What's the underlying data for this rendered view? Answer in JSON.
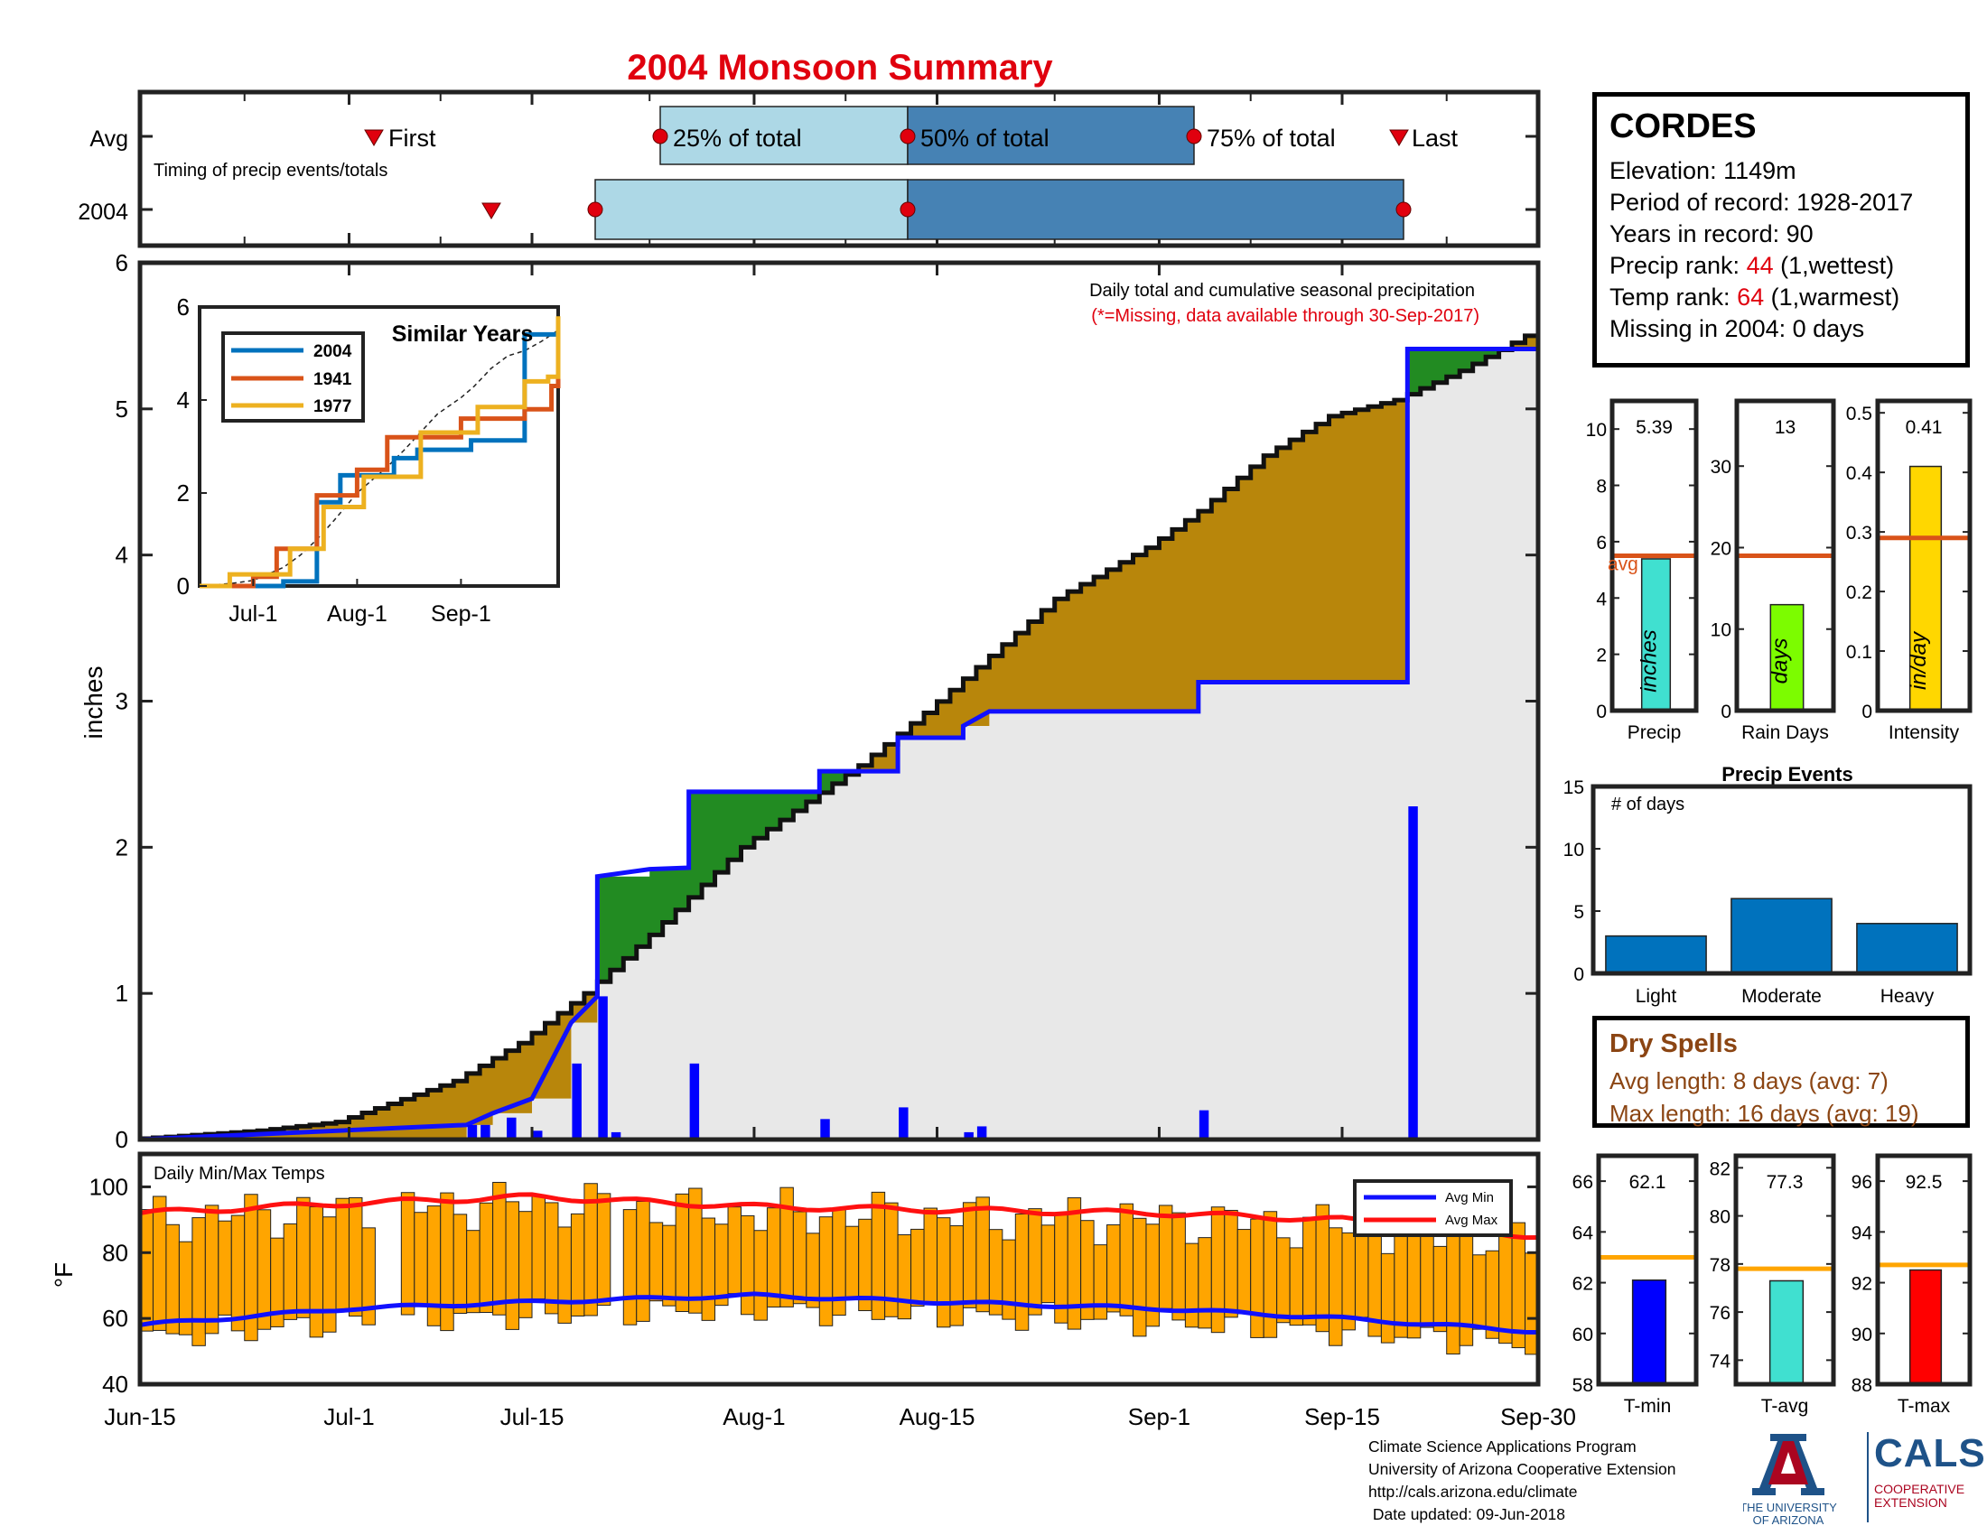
{
  "title": "2004 Monsoon Summary",
  "colors": {
    "title": "#e0000e",
    "cum_line": "#1010ff",
    "wet_fill": "#228b22",
    "dry_fill": "#b8860b",
    "base_fill": "#e8e8e8",
    "daily_bars": "#0000ff",
    "temp_bars": "#ffa500",
    "avg_min": "#1010ff",
    "avg_max": "#ff1010",
    "light_blue": "#add8e6",
    "steel_blue": "#4682b4",
    "marker_red": "#e0000e",
    "precip_bar": "#40e0d0",
    "raindays_bar": "#7cfc00",
    "intensity_bar": "#ffd700",
    "avg_line": "#d95319",
    "events_bar": "#0072bd",
    "tmin_bar": "#0000ff",
    "tavg_bar": "#40e0d0",
    "tmax_bar": "#ff0000",
    "temp_avg_line": "#ffa500",
    "dry_spell_text": "#8b4513"
  },
  "timing": {
    "row_avg": "Avg",
    "row_year": "2004",
    "subtitle": "Timing of precip events/totals",
    "labels": {
      "first": "First",
      "p25": "25% of total",
      "p50": "50% of total",
      "p75": "75% of total",
      "last": "Last"
    },
    "avg": {
      "first": "Jul-4",
      "p25": "Jul-24",
      "p50": "Aug-12",
      "p75": "Aug-31",
      "last": "Sep-20"
    },
    "year": {
      "first": "Jul-11",
      "p25": "Jul-20",
      "p50": "Aug-12",
      "last": "Sep-19"
    }
  },
  "main": {
    "ylabel": "inches",
    "annotation": "Daily total and cumulative seasonal precipitation",
    "annotation2": "(*=Missing, data available through 30-Sep-2017)",
    "x_ticks": [
      "Jun-15",
      "Jul-1",
      "Jul-15",
      "Aug-1",
      "Aug-15",
      "Sep-1",
      "Sep-15",
      "Sep-30"
    ],
    "y_ticks": [
      "0",
      "1",
      "2",
      "3",
      "4",
      "5",
      "6"
    ]
  },
  "inset": {
    "title": "Similar Years",
    "legend": [
      "2004",
      "1941",
      "1977"
    ],
    "x_ticks": [
      "Jul-1",
      "Aug-1",
      "Sep-1"
    ],
    "y_ticks": [
      "0",
      "2",
      "4",
      "6"
    ]
  },
  "temps": {
    "label": "Daily Min/Max Temps",
    "ylabel": "°F",
    "legend": [
      "Avg Min",
      "Avg Max"
    ],
    "y_ticks": [
      "40",
      "60",
      "80",
      "100"
    ]
  },
  "station": {
    "name": "CORDES",
    "elevation_label": "Elevation: 1149m",
    "period_label": "Period of record: 1928-2017",
    "years_label": "Years in record: 90",
    "precip_rank_prefix": "Precip rank: ",
    "precip_rank": "44",
    "precip_rank_suffix": " (1,wettest)",
    "temp_rank_prefix": "Temp rank: ",
    "temp_rank": "64",
    "temp_rank_suffix": " (1,warmest)",
    "missing_label": "Missing in 2004: 0 days"
  },
  "summary_bars": {
    "precip": {
      "value": "5.39",
      "label": "Precip",
      "unit": "inches",
      "avg_label": "avg",
      "y_ticks": [
        "0",
        "2",
        "4",
        "6",
        "8",
        "10"
      ]
    },
    "raindays": {
      "value": "13",
      "label": "Rain Days",
      "unit": "days",
      "y_ticks": [
        "0",
        "10",
        "20",
        "30"
      ]
    },
    "intensity": {
      "value": "0.41",
      "label": "Intensity",
      "unit": "in/day",
      "y_ticks": [
        "0",
        "0.1",
        "0.2",
        "0.3",
        "0.4",
        "0.5"
      ]
    }
  },
  "events": {
    "title": "Precip Events",
    "ylabel": "# of days",
    "categories": [
      "Light",
      "Moderate",
      "Heavy"
    ],
    "y_ticks": [
      "0",
      "5",
      "10",
      "15"
    ]
  },
  "dry_spells": {
    "title": "Dry Spells",
    "avg_length": "Avg length: 8 days (avg: 7)",
    "max_length": "Max length: 16 days (avg: 19)"
  },
  "temp_bars": {
    "tmin": {
      "value": "62.1",
      "label": "T-min",
      "y_ticks": [
        "58",
        "60",
        "62",
        "64",
        "66"
      ]
    },
    "tavg": {
      "value": "77.3",
      "label": "T-avg",
      "y_ticks": [
        "74",
        "76",
        "78",
        "80",
        "82"
      ]
    },
    "tmax": {
      "value": "92.5",
      "label": "T-max",
      "y_ticks": [
        "88",
        "90",
        "92",
        "94",
        "96"
      ]
    }
  },
  "footer": {
    "line1": "Climate Science Applications Program",
    "line2": "University of Arizona Cooperative Extension",
    "line3": "http://cals.arizona.edu/climate",
    "line4": " Date updated: 09-Jun-2018"
  },
  "logos": {
    "ua_line1": "THE UNIVERSITY",
    "ua_line2": "OF ARIZONA",
    "cals": "CALS",
    "cals_sub1": "COOPERATIVE",
    "cals_sub2": "EXTENSION"
  },
  "chart_data": [
    {
      "type": "area",
      "title": "2004 Monsoon Summary",
      "ylabel": "inches",
      "x_range": [
        "Jun-15",
        "Sep-30"
      ],
      "ylim": [
        0,
        6
      ],
      "series": [
        {
          "name": "2004 cumulative",
          "points": [
            [
              "Jun-15",
              0
            ],
            [
              "Jul-10",
              0.1
            ],
            [
              "Jul-12",
              0.18
            ],
            [
              "Jul-15",
              0.28
            ],
            [
              "Jul-18",
              0.8
            ],
            [
              "Jul-20",
              0.98
            ],
            [
              "Jul-20",
              1.8
            ],
            [
              "Jul-24",
              1.85
            ],
            [
              "Jul-27",
              1.86
            ],
            [
              "Jul-27",
              2.38
            ],
            [
              "Aug-6",
              2.38
            ],
            [
              "Aug-6",
              2.52
            ],
            [
              "Aug-12",
              2.52
            ],
            [
              "Aug-12",
              2.75
            ],
            [
              "Aug-17",
              2.75
            ],
            [
              "Aug-17",
              2.83
            ],
            [
              "Aug-19",
              2.93
            ],
            [
              "Sep-4",
              2.93
            ],
            [
              "Sep-4",
              3.13
            ],
            [
              "Sep-20",
              3.13
            ],
            [
              "Sep-20",
              5.41
            ],
            [
              "Sep-30",
              5.41
            ]
          ]
        },
        {
          "name": "Average cumulative",
          "points": [
            [
              "Jun-15",
              0
            ],
            [
              "Jun-25",
              0.06
            ],
            [
              "Jul-1",
              0.12
            ],
            [
              "Jul-10",
              0.4
            ],
            [
              "Jul-15",
              0.66
            ],
            [
              "Jul-20",
              1.0
            ],
            [
              "Jul-25",
              1.4
            ],
            [
              "Aug-1",
              2.0
            ],
            [
              "Aug-10",
              2.56
            ],
            [
              "Aug-15",
              2.92
            ],
            [
              "Aug-25",
              3.7
            ],
            [
              "Sep-1",
              4.05
            ],
            [
              "Sep-5",
              4.3
            ],
            [
              "Sep-10",
              4.68
            ],
            [
              "Sep-15",
              4.95
            ],
            [
              "Sep-20",
              5.06
            ],
            [
              "Sep-25",
              5.26
            ],
            [
              "Sep-30",
              5.5
            ]
          ]
        },
        {
          "name": "Daily precip",
          "points": [
            [
              "Jul-10",
              0.1
            ],
            [
              "Jul-11",
              0.1
            ],
            [
              "Jul-13",
              0.15
            ],
            [
              "Jul-15",
              0.06
            ],
            [
              "Jul-18",
              0.52
            ],
            [
              "Jul-20",
              0.98
            ],
            [
              "Jul-21",
              0.05
            ],
            [
              "Jul-27",
              0.52
            ],
            [
              "Aug-6",
              0.14
            ],
            [
              "Aug-12",
              0.22
            ],
            [
              "Aug-17",
              0.05
            ],
            [
              "Aug-18",
              0.09
            ],
            [
              "Sep-4",
              0.2
            ],
            [
              "Sep-20",
              2.28
            ]
          ]
        }
      ]
    },
    {
      "type": "line",
      "title": "Similar Years",
      "x_ticks": [
        "Jul-1",
        "Aug-1",
        "Sep-1"
      ],
      "ylim": [
        0,
        6
      ],
      "series": [
        {
          "name": "2004",
          "points": [
            [
              "Jun-15",
              0
            ],
            [
              "Jul-10",
              0.1
            ],
            [
              "Jul-20",
              1.8
            ],
            [
              "Jul-27",
              2.38
            ],
            [
              "Aug-12",
              2.75
            ],
            [
              "Aug-19",
              2.93
            ],
            [
              "Sep-4",
              3.13
            ],
            [
              "Sep-20",
              5.41
            ],
            [
              "Sep-30",
              5.41
            ]
          ]
        },
        {
          "name": "1941",
          "points": [
            [
              "Jun-15",
              0
            ],
            [
              "Jul-1",
              0.2
            ],
            [
              "Jul-8",
              0.8
            ],
            [
              "Jul-20",
              1.95
            ],
            [
              "Aug-1",
              2.5
            ],
            [
              "Aug-10",
              3.2
            ],
            [
              "Sep-1",
              3.6
            ],
            [
              "Sep-20",
              3.8
            ],
            [
              "Sep-28",
              4.3
            ],
            [
              "Sep-30",
              4.8
            ]
          ]
        },
        {
          "name": "1977",
          "points": [
            [
              "Jun-15",
              0
            ],
            [
              "Jun-24",
              0.25
            ],
            [
              "Jul-12",
              0.8
            ],
            [
              "Jul-22",
              1.7
            ],
            [
              "Aug-3",
              2.35
            ],
            [
              "Aug-20",
              3.3
            ],
            [
              "Sep-6",
              3.85
            ],
            [
              "Sep-20",
              4.4
            ],
            [
              "Sep-27",
              4.5
            ],
            [
              "Sep-30",
              5.8
            ]
          ]
        }
      ]
    },
    {
      "type": "bar",
      "title": "Daily Min/Max Temps",
      "ylabel": "°F",
      "ylim": [
        40,
        110
      ],
      "series": [
        {
          "name": "Avg Min",
          "points": [
            [
              "Jun-15",
              58
            ],
            [
              "Jul-1",
              63
            ],
            [
              "Jul-15",
              65
            ],
            [
              "Aug-1",
              67
            ],
            [
              "Aug-15",
              65
            ],
            [
              "Sep-1",
              63
            ],
            [
              "Sep-15",
              60
            ],
            [
              "Sep-30",
              56
            ]
          ]
        },
        {
          "name": "Avg Max",
          "points": [
            [
              "Jun-15",
              92
            ],
            [
              "Jul-1",
              95
            ],
            [
              "Jul-15",
              97
            ],
            [
              "Aug-1",
              94
            ],
            [
              "Aug-15",
              93
            ],
            [
              "Sep-1",
              92
            ],
            [
              "Sep-15",
              90
            ],
            [
              "Sep-30",
              85
            ]
          ]
        }
      ]
    },
    {
      "type": "bar",
      "categories": [
        "Precip"
      ],
      "values": [
        5.39
      ],
      "avg": 5.5,
      "ylim": [
        0,
        11
      ]
    },
    {
      "type": "bar",
      "categories": [
        "Rain Days"
      ],
      "values": [
        13
      ],
      "avg": 19,
      "ylim": [
        0,
        38
      ]
    },
    {
      "type": "bar",
      "categories": [
        "Intensity"
      ],
      "values": [
        0.41
      ],
      "avg": 0.29,
      "ylim": [
        0,
        0.52
      ]
    },
    {
      "type": "bar",
      "title": "Precip Events",
      "categories": [
        "Light",
        "Moderate",
        "Heavy"
      ],
      "values": [
        3,
        6,
        4
      ],
      "ylim": [
        0,
        15
      ]
    },
    {
      "type": "bar",
      "categories": [
        "T-min"
      ],
      "values": [
        62.1
      ],
      "avg": 63,
      "ylim": [
        58,
        67
      ]
    },
    {
      "type": "bar",
      "categories": [
        "T-avg"
      ],
      "values": [
        77.3
      ],
      "avg": 77.8,
      "ylim": [
        73,
        82.5
      ]
    },
    {
      "type": "bar",
      "categories": [
        "T-max"
      ],
      "values": [
        92.5
      ],
      "avg": 92.7,
      "ylim": [
        88,
        97
      ]
    }
  ]
}
